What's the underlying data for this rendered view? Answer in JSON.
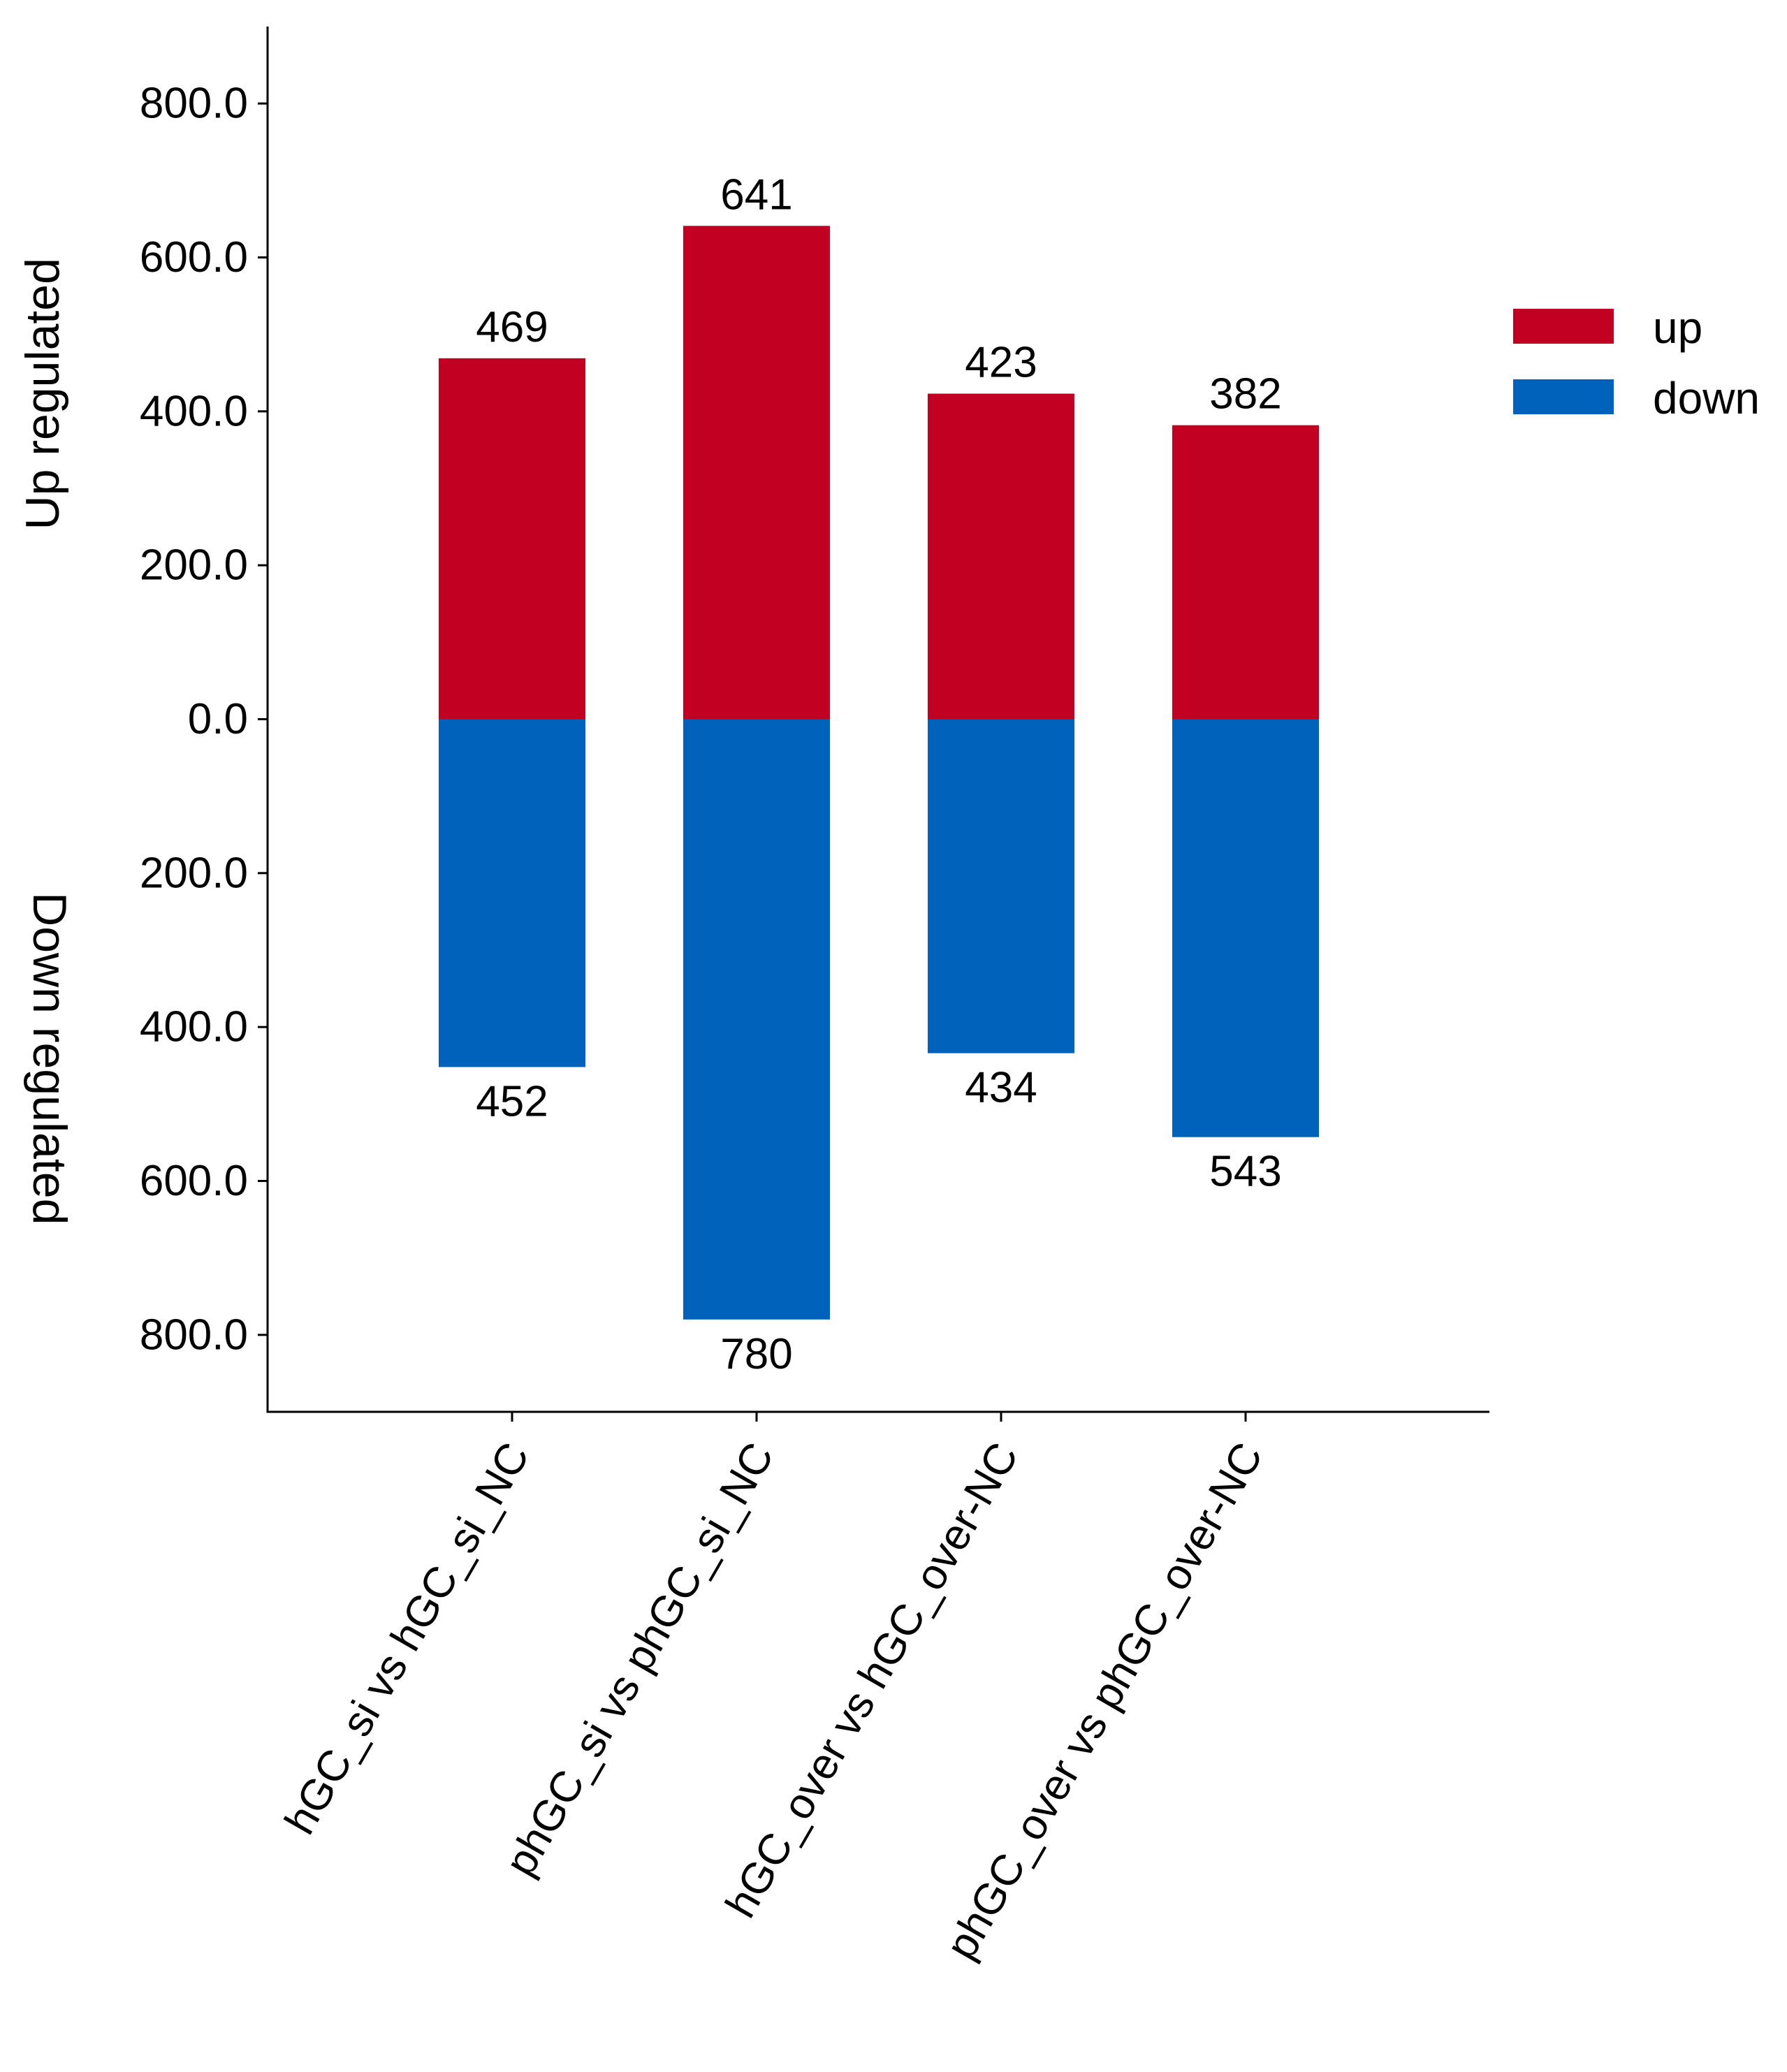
{
  "chart_data": {
    "type": "bar",
    "subtype": "diverging-stacked",
    "title": "",
    "categories": [
      "hGC_si vs hGC_si_NC",
      "phGC_si vs phGC_si_NC",
      "hGC_over vs hGC_over-NC",
      "phGC_over vs phGC_over-NC"
    ],
    "series": [
      {
        "name": "up",
        "color": "#C20022",
        "values": [
          469,
          641,
          423,
          382
        ]
      },
      {
        "name": "down",
        "color": "#0062BA",
        "values": [
          452,
          780,
          434,
          543
        ]
      }
    ],
    "ylabel_up": "Up regulated",
    "ylabel_down": "Down regulated",
    "xlabel": "",
    "ylim": [
      -900,
      900
    ],
    "yticks": [
      -800,
      -600,
      -400,
      -200,
      0,
      200,
      400,
      600,
      800
    ],
    "ytick_labels": [
      "800.0",
      "600.0",
      "400.0",
      "200.0",
      "0.0",
      "200.0",
      "400.0",
      "600.0",
      "800.0"
    ],
    "legend": {
      "position": "top-right outside",
      "entries": [
        "up",
        "down"
      ]
    },
    "grid": false
  }
}
